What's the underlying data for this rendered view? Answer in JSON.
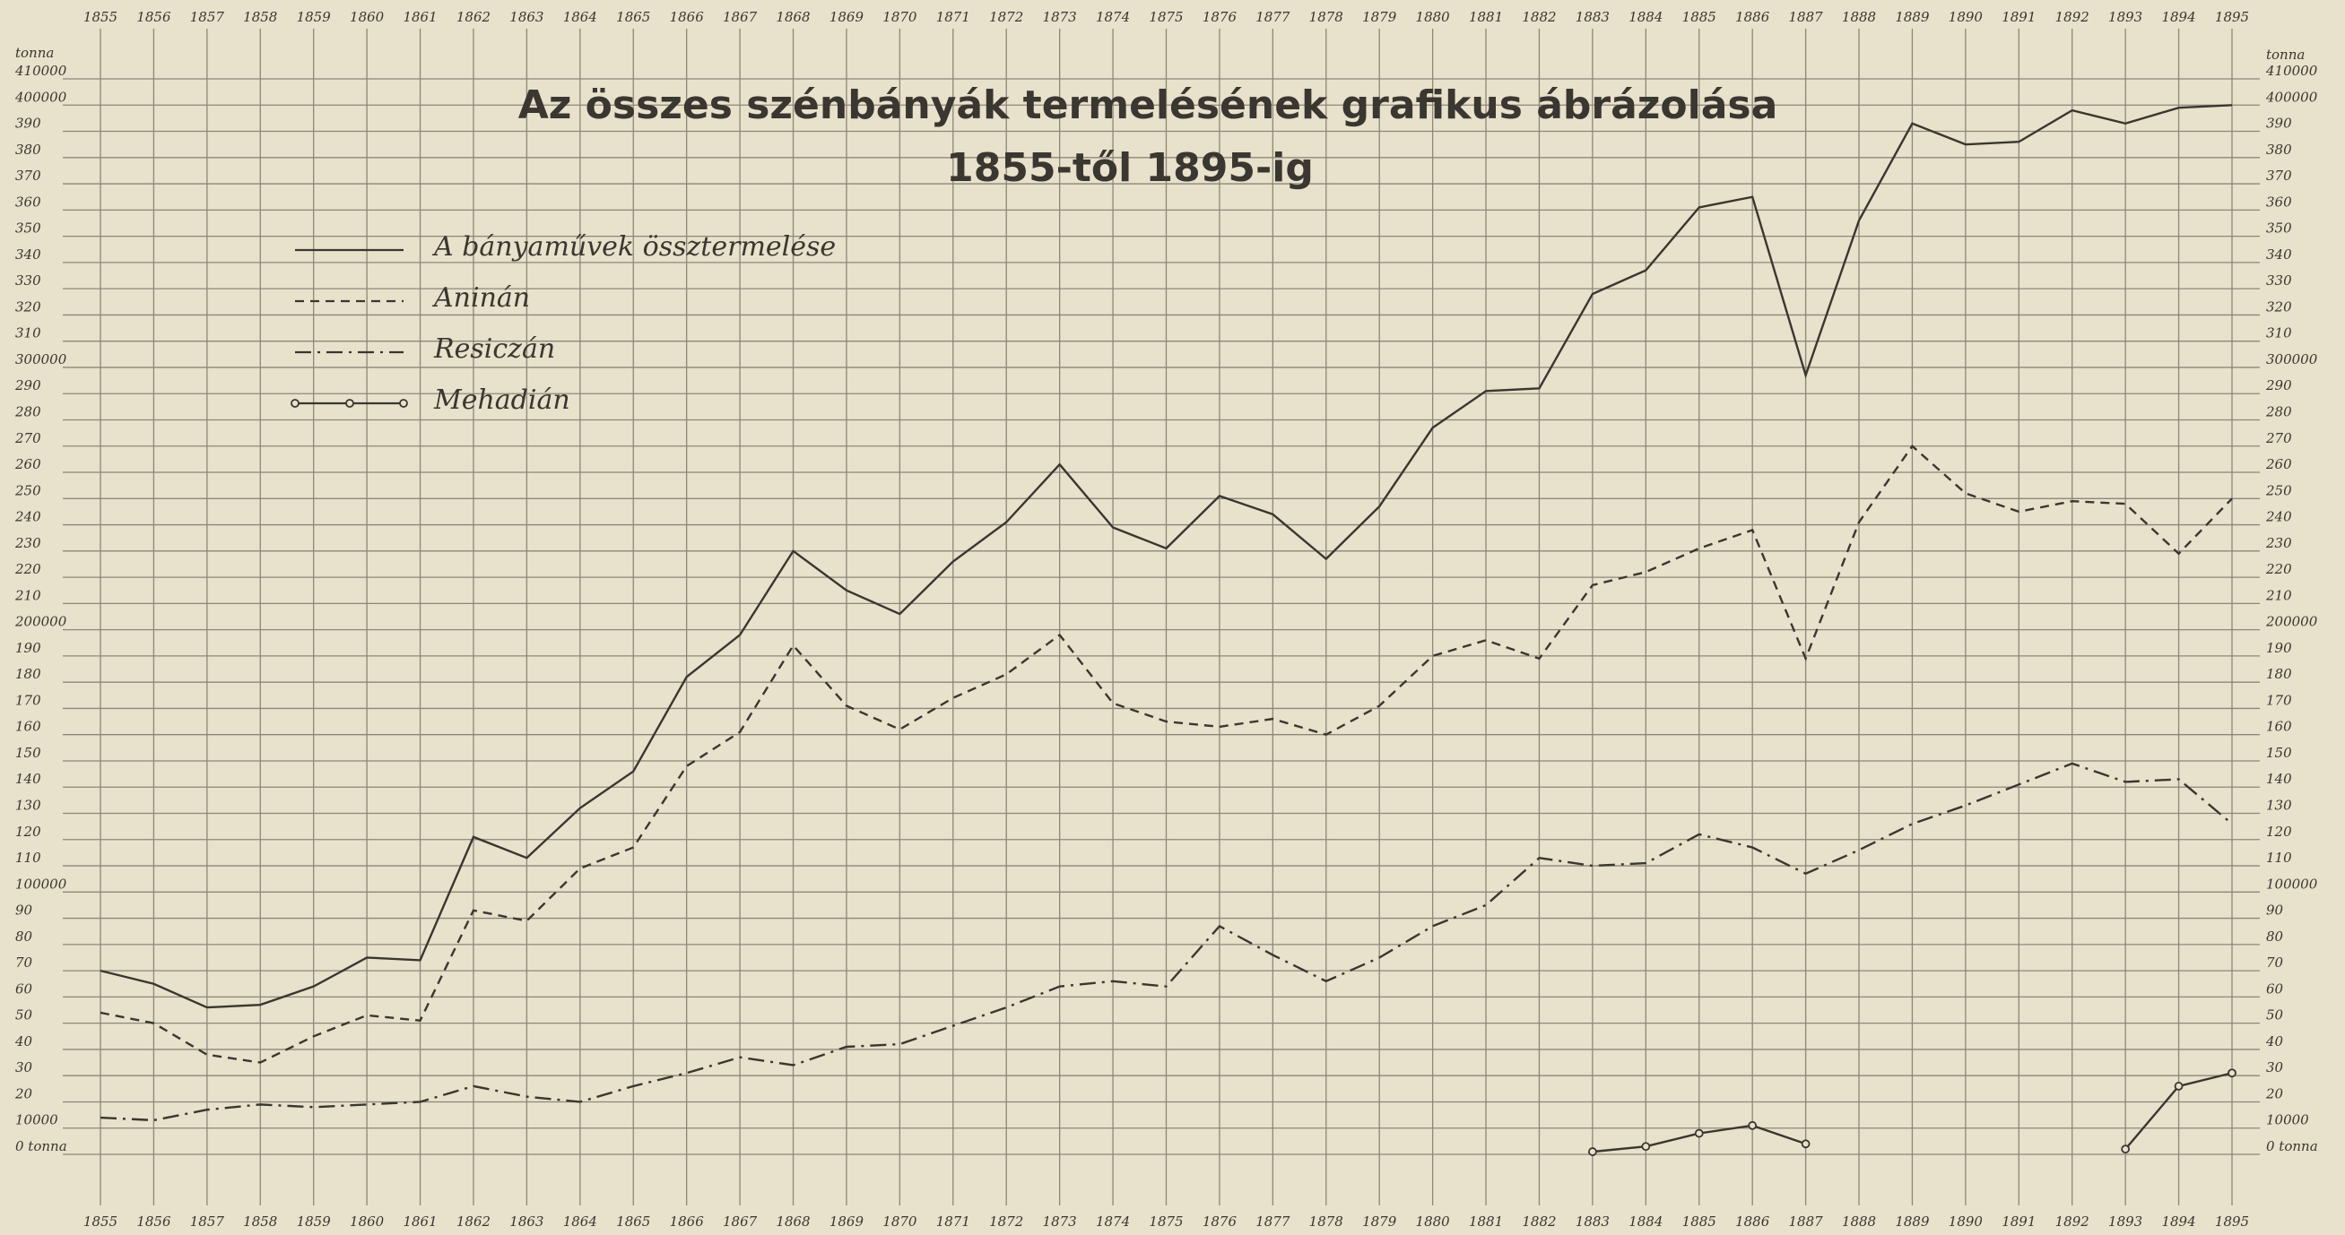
{
  "chart_data": {
    "type": "line",
    "title": "Az összes szénbányák termelésének grafikus ábrázolása",
    "subtitle": "1855-től 1895-ig",
    "y_axis_label": "tonna",
    "x": [
      1855,
      1856,
      1857,
      1858,
      1859,
      1860,
      1861,
      1862,
      1863,
      1864,
      1865,
      1866,
      1867,
      1868,
      1869,
      1870,
      1871,
      1872,
      1873,
      1874,
      1875,
      1876,
      1877,
      1878,
      1879,
      1880,
      1881,
      1882,
      1883,
      1884,
      1885,
      1886,
      1887,
      1888,
      1889,
      1890,
      1891,
      1892,
      1893,
      1894,
      1895
    ],
    "xlim": [
      1855,
      1895
    ],
    "ylim": [
      0,
      410000
    ],
    "yticks": [
      {
        "value": 0,
        "label": "0 tonna"
      },
      10000,
      {
        "value": 20000,
        "label": "20"
      },
      {
        "value": 30000,
        "label": "30"
      },
      {
        "value": 40000,
        "label": "40"
      },
      {
        "value": 50000,
        "label": "50"
      },
      {
        "value": 60000,
        "label": "60"
      },
      {
        "value": 70000,
        "label": "70"
      },
      {
        "value": 80000,
        "label": "80"
      },
      {
        "value": 90000,
        "label": "90"
      },
      100000,
      {
        "value": 110000,
        "label": "110"
      },
      {
        "value": 120000,
        "label": "120"
      },
      {
        "value": 130000,
        "label": "130"
      },
      {
        "value": 140000,
        "label": "140"
      },
      {
        "value": 150000,
        "label": "150"
      },
      {
        "value": 160000,
        "label": "160"
      },
      {
        "value": 170000,
        "label": "170"
      },
      {
        "value": 180000,
        "label": "180"
      },
      {
        "value": 190000,
        "label": "190"
      },
      200000,
      {
        "value": 210000,
        "label": "210"
      },
      {
        "value": 220000,
        "label": "220"
      },
      {
        "value": 230000,
        "label": "230"
      },
      {
        "value": 240000,
        "label": "240"
      },
      {
        "value": 250000,
        "label": "250"
      },
      {
        "value": 260000,
        "label": "260"
      },
      {
        "value": 270000,
        "label": "270"
      },
      {
        "value": 280000,
        "label": "280"
      },
      {
        "value": 290000,
        "label": "290"
      },
      300000,
      {
        "value": 310000,
        "label": "310"
      },
      {
        "value": 320000,
        "label": "320"
      },
      {
        "value": 330000,
        "label": "330"
      },
      {
        "value": 340000,
        "label": "340"
      },
      {
        "value": 350000,
        "label": "350"
      },
      {
        "value": 360000,
        "label": "360"
      },
      {
        "value": 370000,
        "label": "370"
      },
      {
        "value": 380000,
        "label": "380"
      },
      {
        "value": 390000,
        "label": "390"
      },
      400000,
      410000
    ],
    "grid": true,
    "legend": "upper left",
    "series": [
      {
        "name": "A bányaművek össztermelése",
        "color": "#3a3630",
        "linestyle": "solid",
        "values": [
          70000,
          65000,
          56000,
          57000,
          64000,
          75000,
          74000,
          121000,
          113000,
          132000,
          146000,
          182000,
          198000,
          230000,
          215000,
          206000,
          226000,
          241000,
          263000,
          239000,
          231000,
          251000,
          244000,
          227000,
          247000,
          277000,
          291000,
          292000,
          328000,
          337000,
          361000,
          365000,
          297000,
          356000,
          393000,
          385000,
          386000,
          398000,
          393000,
          399000,
          400000
        ]
      },
      {
        "name": "Aninán",
        "color": "#3a3630",
        "linestyle": "dashed",
        "values": [
          54000,
          50000,
          38000,
          35000,
          45000,
          53000,
          51000,
          93000,
          89000,
          109000,
          117000,
          148000,
          161000,
          194000,
          171000,
          162000,
          174000,
          183000,
          198000,
          172000,
          165000,
          163000,
          166000,
          160000,
          171000,
          190000,
          196000,
          189000,
          217000,
          222000,
          231000,
          238000,
          189000,
          241000,
          270000,
          252000,
          245000,
          249000,
          248000,
          229000,
          250000
        ]
      },
      {
        "name": "Resiczán",
        "color": "#3a3630",
        "linestyle": "dashdot",
        "values": [
          14000,
          13000,
          17000,
          19000,
          18000,
          19000,
          20000,
          26000,
          22000,
          20000,
          26000,
          31000,
          37000,
          34000,
          41000,
          42000,
          49000,
          56000,
          64000,
          66000,
          64000,
          87000,
          76000,
          66000,
          75000,
          87000,
          95000,
          113000,
          110000,
          111000,
          122000,
          117000,
          107000,
          116000,
          126000,
          133000,
          141000,
          149000,
          142000,
          143000,
          126000
        ]
      },
      {
        "name": "Mehadián",
        "color": "#3a3630",
        "linestyle": "solid-marker",
        "values": [
          null,
          null,
          null,
          null,
          null,
          null,
          null,
          null,
          null,
          null,
          null,
          null,
          null,
          null,
          null,
          null,
          null,
          null,
          null,
          null,
          null,
          null,
          null,
          null,
          null,
          null,
          null,
          null,
          1000,
          3000,
          8000,
          11000,
          4000,
          null,
          null,
          null,
          null,
          null,
          2000,
          26000,
          31000
        ]
      }
    ]
  }
}
